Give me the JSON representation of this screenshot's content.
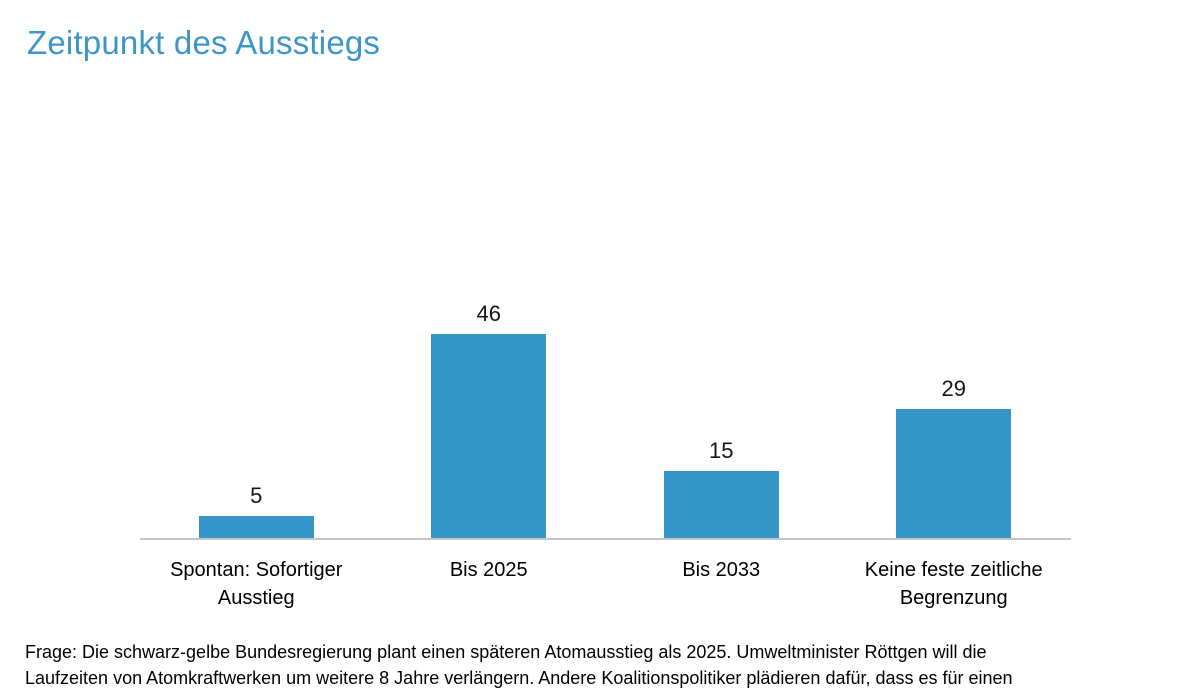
{
  "page": {
    "title": "Zeitpunkt des Ausstiegs"
  },
  "chart_data": {
    "type": "bar",
    "title": "Zeitpunkt des Ausstiegs",
    "categories": [
      "Spontan: Sofortiger Ausstieg",
      "Bis 2025",
      "Bis 2033",
      "Keine feste zeitliche Begrenzung"
    ],
    "values": [
      5,
      46,
      15,
      29
    ],
    "value_labels": [
      "5",
      "46",
      "15",
      "29"
    ],
    "xlabel": "",
    "ylabel": "",
    "ylim": [
      0,
      50
    ],
    "grid": false,
    "legend": false,
    "bar_color": "#3597C9",
    "axis_line_color": "#C4C4C4",
    "label_color": "#161616"
  },
  "footer": {
    "lines": [
      "Frage: Die schwarz-gelbe Bundesregierung plant einen späteren Atomausstieg als 2025. Umweltminister Röttgen will die",
      "Laufzeiten von Atomkraftwerken um weitere 8 Jahre verlängern. Andere Koalitionspolitiker plädieren dafür, dass es für einen"
    ]
  },
  "colors": {
    "title": "#3E96C8",
    "bar": "#3597C9",
    "axis": "#C4C4C4",
    "text": "#000000",
    "background": "#FFFFFF"
  }
}
